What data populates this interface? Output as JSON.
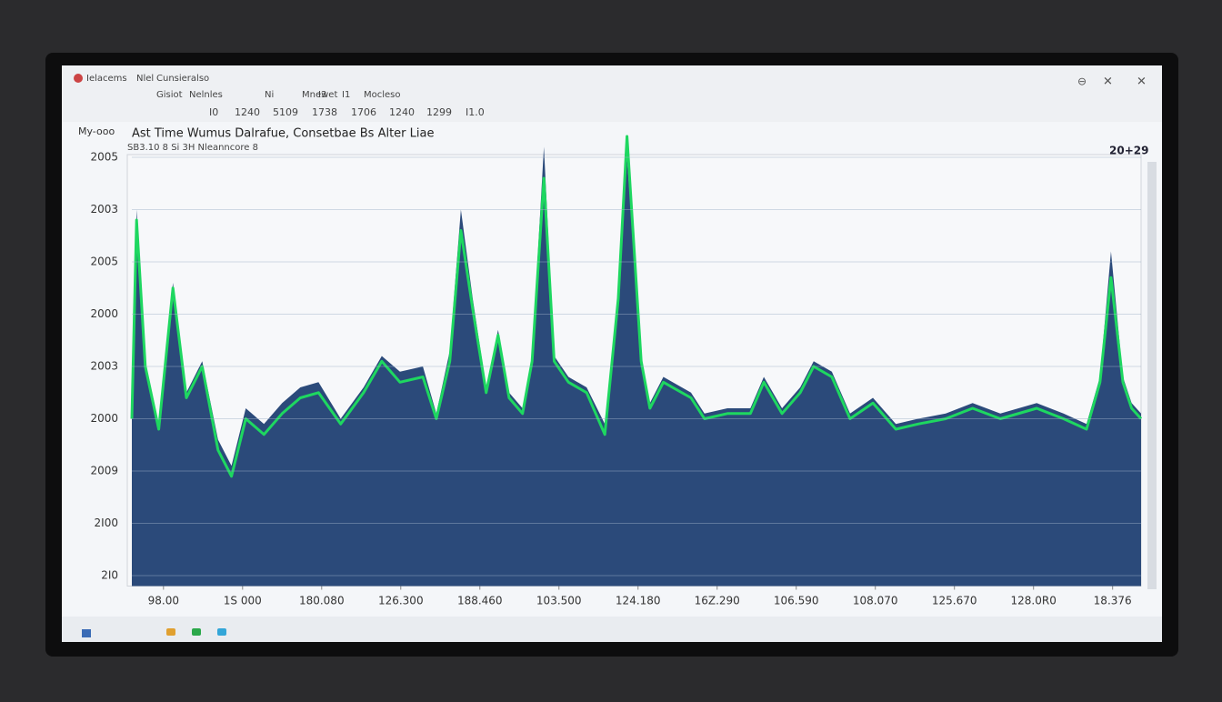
{
  "ui": {
    "toolbar1": [
      "Ielacems",
      "Nlel",
      "Cunsieralso",
      "Gisiot",
      "Nelnles",
      "Ni",
      "Mnewet",
      "I3",
      "I1",
      "Mocleso"
    ],
    "toolbar2": [
      "I0",
      "1240",
      "5109",
      "1738",
      "1706",
      "1240",
      "1299",
      "I1.0"
    ],
    "panel_label": "My-ooo",
    "corner_label": "20+29"
  },
  "chart_data": {
    "type": "area",
    "title": "Ast Time Wumus Dalrafue, Consetbae Bs Alter Liae",
    "subtitle": "SB3.10 8 Si 3H Nleanncore 8",
    "x": [
      0,
      0.06,
      0.17,
      0.34,
      0.52,
      0.69,
      0.89,
      1.09,
      1.26,
      1.44,
      1.67,
      1.9,
      2.13,
      2.36,
      2.64,
      2.93,
      3.16,
      3.39,
      3.68,
      3.85,
      4.02,
      4.16,
      4.31,
      4.48,
      4.63,
      4.77,
      4.94,
      5.06,
      5.21,
      5.34,
      5.52,
      5.75,
      5.98,
      6.15,
      6.26,
      6.44,
      6.55,
      6.72,
      7.07,
      7.24,
      7.53,
      7.82,
      7.99,
      8.22,
      8.45,
      8.62,
      8.85,
      9.08,
      9.37,
      9.66,
      9.94,
      10.29,
      10.63,
      10.98,
      11.44,
      11.78,
      12.07,
      12.24,
      12.38,
      12.53,
      12.64,
      12.76
    ],
    "series": [
      {
        "color": "#2b4a7a",
        "values": [
          3.2,
          7.0,
          4.1,
          2.9,
          5.6,
          3.5,
          4.1,
          2.6,
          2.1,
          3.2,
          2.9,
          3.3,
          3.6,
          3.7,
          3.0,
          3.6,
          4.2,
          3.9,
          4.0,
          3.1,
          4.3,
          7.0,
          5.3,
          3.6,
          4.7,
          3.5,
          3.2,
          4.2,
          8.2,
          4.2,
          3.8,
          3.6,
          2.9,
          5.2,
          8.0,
          4.2,
          3.3,
          3.8,
          3.5,
          3.1,
          3.2,
          3.2,
          3.8,
          3.2,
          3.6,
          4.1,
          3.9,
          3.1,
          3.4,
          2.9,
          3.0,
          3.1,
          3.3,
          3.1,
          3.3,
          3.1,
          2.9,
          3.8,
          6.2,
          3.8,
          3.3,
          3.1
        ]
      },
      {
        "color": "#1ed760",
        "values": [
          3.0,
          6.8,
          4.0,
          2.8,
          5.5,
          3.4,
          4.0,
          2.4,
          1.9,
          3.0,
          2.7,
          3.1,
          3.4,
          3.5,
          2.9,
          3.5,
          4.1,
          3.7,
          3.8,
          3.0,
          4.1,
          6.6,
          5.1,
          3.5,
          4.6,
          3.4,
          3.1,
          4.1,
          7.6,
          4.1,
          3.7,
          3.5,
          2.7,
          5.3,
          8.4,
          4.1,
          3.2,
          3.7,
          3.4,
          3.0,
          3.1,
          3.1,
          3.7,
          3.1,
          3.5,
          4.0,
          3.8,
          3.0,
          3.3,
          2.8,
          2.9,
          3.0,
          3.2,
          3.0,
          3.2,
          3.0,
          2.8,
          3.7,
          5.7,
          3.7,
          3.2,
          3.0
        ]
      }
    ],
    "xlim": [
      0,
      12.76
    ],
    "ylim": [
      -0.2,
      8.4
    ],
    "xticks": [
      {
        "value": 0.4,
        "label": "98.00"
      },
      {
        "value": 1.4,
        "label": "1S 000"
      },
      {
        "value": 2.4,
        "label": "180.080"
      },
      {
        "value": 3.4,
        "label": "126.300"
      },
      {
        "value": 4.4,
        "label": "188.460"
      },
      {
        "value": 5.4,
        "label": "103.500"
      },
      {
        "value": 6.4,
        "label": "124.180"
      },
      {
        "value": 7.4,
        "label": "16Z.290"
      },
      {
        "value": 8.4,
        "label": "106.590"
      },
      {
        "value": 9.4,
        "label": "108.070"
      },
      {
        "value": 10.4,
        "label": "125.670"
      },
      {
        "value": 11.4,
        "label": "128.0R0"
      },
      {
        "value": 12.4,
        "label": "18.376"
      }
    ],
    "yticks": [
      {
        "value": 0,
        "label": "2I0"
      },
      {
        "value": 1,
        "label": "2I00"
      },
      {
        "value": 2,
        "label": "2009"
      },
      {
        "value": 3,
        "label": "2000"
      },
      {
        "value": 4,
        "label": "2003"
      },
      {
        "value": 5,
        "label": "2000"
      },
      {
        "value": 6,
        "label": "2005"
      },
      {
        "value": 7,
        "label": "2003"
      },
      {
        "value": 8,
        "label": "2005"
      }
    ],
    "grid": true
  }
}
